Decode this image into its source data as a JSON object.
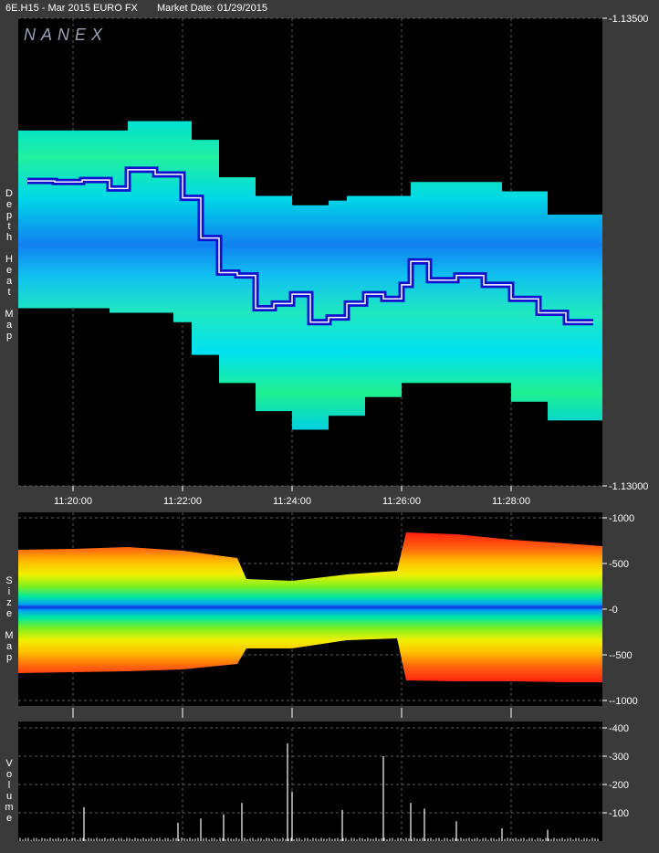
{
  "header": {
    "symbol": "6E.H15 - Mar 2015 EURO FX",
    "market_date": "Market Date: 01/29/2015"
  },
  "logo": "NANEX",
  "side_labels": {
    "heatmap": [
      "D",
      "e",
      "p",
      "t",
      "h",
      "",
      "H",
      "e",
      "a",
      "t",
      "",
      "M",
      "a",
      "p"
    ],
    "sizemap": [
      "S",
      "i",
      "z",
      "e",
      "",
      "M",
      "a",
      "p"
    ],
    "volume": [
      "V",
      "o",
      "l",
      "u",
      "m",
      "e"
    ]
  },
  "colors": {
    "background": "#000000",
    "frame": "#3a3a3a",
    "grid": "#5a5a5a",
    "price_trace": "#ffffff",
    "bid_ask": "#1010d0"
  },
  "chart_data": [
    {
      "type": "heatmap",
      "name": "Depth Heat Map",
      "x_ticks": [
        "11:20:00",
        "11:22:00",
        "11:24:00",
        "11:26:00",
        "11:28:00"
      ],
      "y_ticks": [
        "1.13500",
        "1.13000"
      ],
      "ylim": [
        1.13,
        1.135
      ],
      "time_range": [
        "11:19:00",
        "11:29:40"
      ],
      "price_trace": [
        {
          "t": "11:19:10",
          "p": 1.13326
        },
        {
          "t": "11:19:40",
          "p": 1.13325
        },
        {
          "t": "11:20:10",
          "p": 1.13327
        },
        {
          "t": "11:20:40",
          "p": 1.13318
        },
        {
          "t": "11:21:00",
          "p": 1.13338
        },
        {
          "t": "11:21:30",
          "p": 1.13333
        },
        {
          "t": "11:22:00",
          "p": 1.13308
        },
        {
          "t": "11:22:20",
          "p": 1.13265
        },
        {
          "t": "11:22:40",
          "p": 1.13228
        },
        {
          "t": "11:23:00",
          "p": 1.13225
        },
        {
          "t": "11:23:20",
          "p": 1.1319
        },
        {
          "t": "11:23:40",
          "p": 1.13195
        },
        {
          "t": "11:24:00",
          "p": 1.13205
        },
        {
          "t": "11:24:20",
          "p": 1.13175
        },
        {
          "t": "11:24:40",
          "p": 1.1318
        },
        {
          "t": "11:25:00",
          "p": 1.13195
        },
        {
          "t": "11:25:20",
          "p": 1.13205
        },
        {
          "t": "11:25:40",
          "p": 1.132
        },
        {
          "t": "11:26:00",
          "p": 1.13215
        },
        {
          "t": "11:26:10",
          "p": 1.1324
        },
        {
          "t": "11:26:30",
          "p": 1.1322
        },
        {
          "t": "11:27:00",
          "p": 1.13225
        },
        {
          "t": "11:27:30",
          "p": 1.13215
        },
        {
          "t": "11:28:00",
          "p": 1.132
        },
        {
          "t": "11:28:30",
          "p": 1.13185
        },
        {
          "t": "11:29:00",
          "p": 1.13175
        },
        {
          "t": "11:29:30",
          "p": 1.13175
        }
      ],
      "depth_top": [
        {
          "t": "11:19:00",
          "p": 1.1338
        },
        {
          "t": "11:20:50",
          "p": 1.1338
        },
        {
          "t": "11:21:00",
          "p": 1.1339
        },
        {
          "t": "11:21:50",
          "p": 1.1339
        },
        {
          "t": "11:22:10",
          "p": 1.1337
        },
        {
          "t": "11:22:40",
          "p": 1.1333
        },
        {
          "t": "11:23:20",
          "p": 1.1331
        },
        {
          "t": "11:24:00",
          "p": 1.133
        },
        {
          "t": "11:24:40",
          "p": 1.13305
        },
        {
          "t": "11:25:00",
          "p": 1.1331
        },
        {
          "t": "11:25:50",
          "p": 1.1331
        },
        {
          "t": "11:26:10",
          "p": 1.13325
        },
        {
          "t": "11:27:50",
          "p": 1.13315
        },
        {
          "t": "11:28:40",
          "p": 1.1329
        },
        {
          "t": "11:29:40",
          "p": 1.1327
        }
      ],
      "depth_bottom": [
        {
          "t": "11:19:00",
          "p": 1.1319
        },
        {
          "t": "11:20:40",
          "p": 1.13185
        },
        {
          "t": "11:21:50",
          "p": 1.13175
        },
        {
          "t": "11:22:10",
          "p": 1.1314
        },
        {
          "t": "11:22:40",
          "p": 1.1311
        },
        {
          "t": "11:23:20",
          "p": 1.1308
        },
        {
          "t": "11:24:00",
          "p": 1.1306
        },
        {
          "t": "11:24:40",
          "p": 1.13075
        },
        {
          "t": "11:25:20",
          "p": 1.13095
        },
        {
          "t": "11:26:00",
          "p": 1.1311
        },
        {
          "t": "11:27:10",
          "p": 1.1311
        },
        {
          "t": "11:28:00",
          "p": 1.1309
        },
        {
          "t": "11:28:40",
          "p": 1.1307
        },
        {
          "t": "11:29:40",
          "p": 1.1307
        }
      ]
    },
    {
      "type": "area",
      "name": "Size Map",
      "y_ticks": [
        "1000",
        "500",
        "0",
        "-500",
        "-1000"
      ],
      "ylim": [
        -1000,
        1000
      ],
      "time_range": [
        "11:19:00",
        "11:29:40"
      ],
      "envelope": [
        {
          "t": "11:19:00",
          "top": 650,
          "bottom": -700
        },
        {
          "t": "11:20:00",
          "top": 660,
          "bottom": -690
        },
        {
          "t": "11:21:00",
          "top": 680,
          "bottom": -680
        },
        {
          "t": "11:22:00",
          "top": 640,
          "bottom": -660
        },
        {
          "t": "11:23:00",
          "top": 560,
          "bottom": -600
        },
        {
          "t": "11:23:10",
          "top": 330,
          "bottom": -430
        },
        {
          "t": "11:24:00",
          "top": 310,
          "bottom": -430
        },
        {
          "t": "11:25:00",
          "top": 380,
          "bottom": -340
        },
        {
          "t": "11:25:55",
          "top": 420,
          "bottom": -320
        },
        {
          "t": "11:26:05",
          "top": 840,
          "bottom": -780
        },
        {
          "t": "11:27:00",
          "top": 820,
          "bottom": -790
        },
        {
          "t": "11:28:00",
          "top": 760,
          "bottom": -790
        },
        {
          "t": "11:29:00",
          "top": 720,
          "bottom": -800
        },
        {
          "t": "11:29:40",
          "top": 690,
          "bottom": -800
        }
      ]
    },
    {
      "type": "bar",
      "name": "Volume",
      "y_ticks": [
        "400",
        "300",
        "200",
        "100"
      ],
      "ylim": [
        0,
        400
      ],
      "time_range": [
        "11:19:00",
        "11:29:40"
      ],
      "spikes": [
        {
          "t": "11:20:12",
          "v": 120
        },
        {
          "t": "11:21:55",
          "v": 65
        },
        {
          "t": "11:22:20",
          "v": 80
        },
        {
          "t": "11:22:45",
          "v": 95
        },
        {
          "t": "11:23:05",
          "v": 135
        },
        {
          "t": "11:23:55",
          "v": 345
        },
        {
          "t": "11:24:00",
          "v": 175
        },
        {
          "t": "11:24:55",
          "v": 110
        },
        {
          "t": "11:25:40",
          "v": 300
        },
        {
          "t": "11:26:10",
          "v": 135
        },
        {
          "t": "11:26:25",
          "v": 115
        },
        {
          "t": "11:27:00",
          "v": 70
        },
        {
          "t": "11:27:50",
          "v": 45
        },
        {
          "t": "11:28:40",
          "v": 40
        }
      ],
      "baseline": 12
    }
  ]
}
